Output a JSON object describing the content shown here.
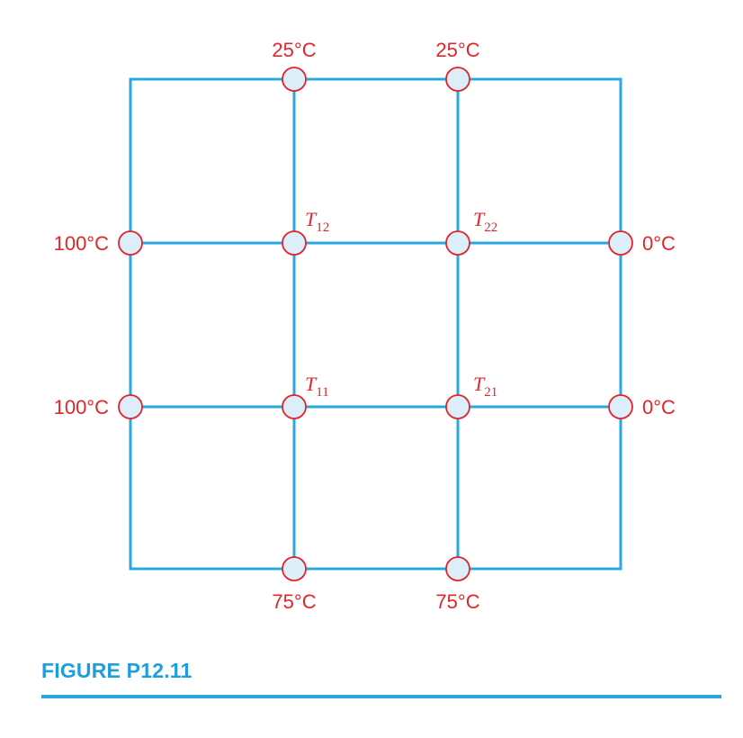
{
  "boundary_labels": {
    "top_left": "25°C",
    "top_right": "25°C",
    "left_upper": "100°C",
    "left_lower": "100°C",
    "right_upper": "0°C",
    "right_lower": "0°C",
    "bottom_left": "75°C",
    "bottom_right": "75°C"
  },
  "unknowns": {
    "t12": {
      "symbol": "T",
      "subscript": "12"
    },
    "t22": {
      "symbol": "T",
      "subscript": "22"
    },
    "t11": {
      "symbol": "T",
      "subscript": "11"
    },
    "t21": {
      "symbol": "T",
      "subscript": "21"
    }
  },
  "caption": "FIGURE P12.11",
  "colors": {
    "grid": "#29a8e0",
    "node_fill": "#dbeefa",
    "node_stroke": "#e3242b",
    "label": "#e3242b",
    "caption": "#1e9fdc"
  }
}
